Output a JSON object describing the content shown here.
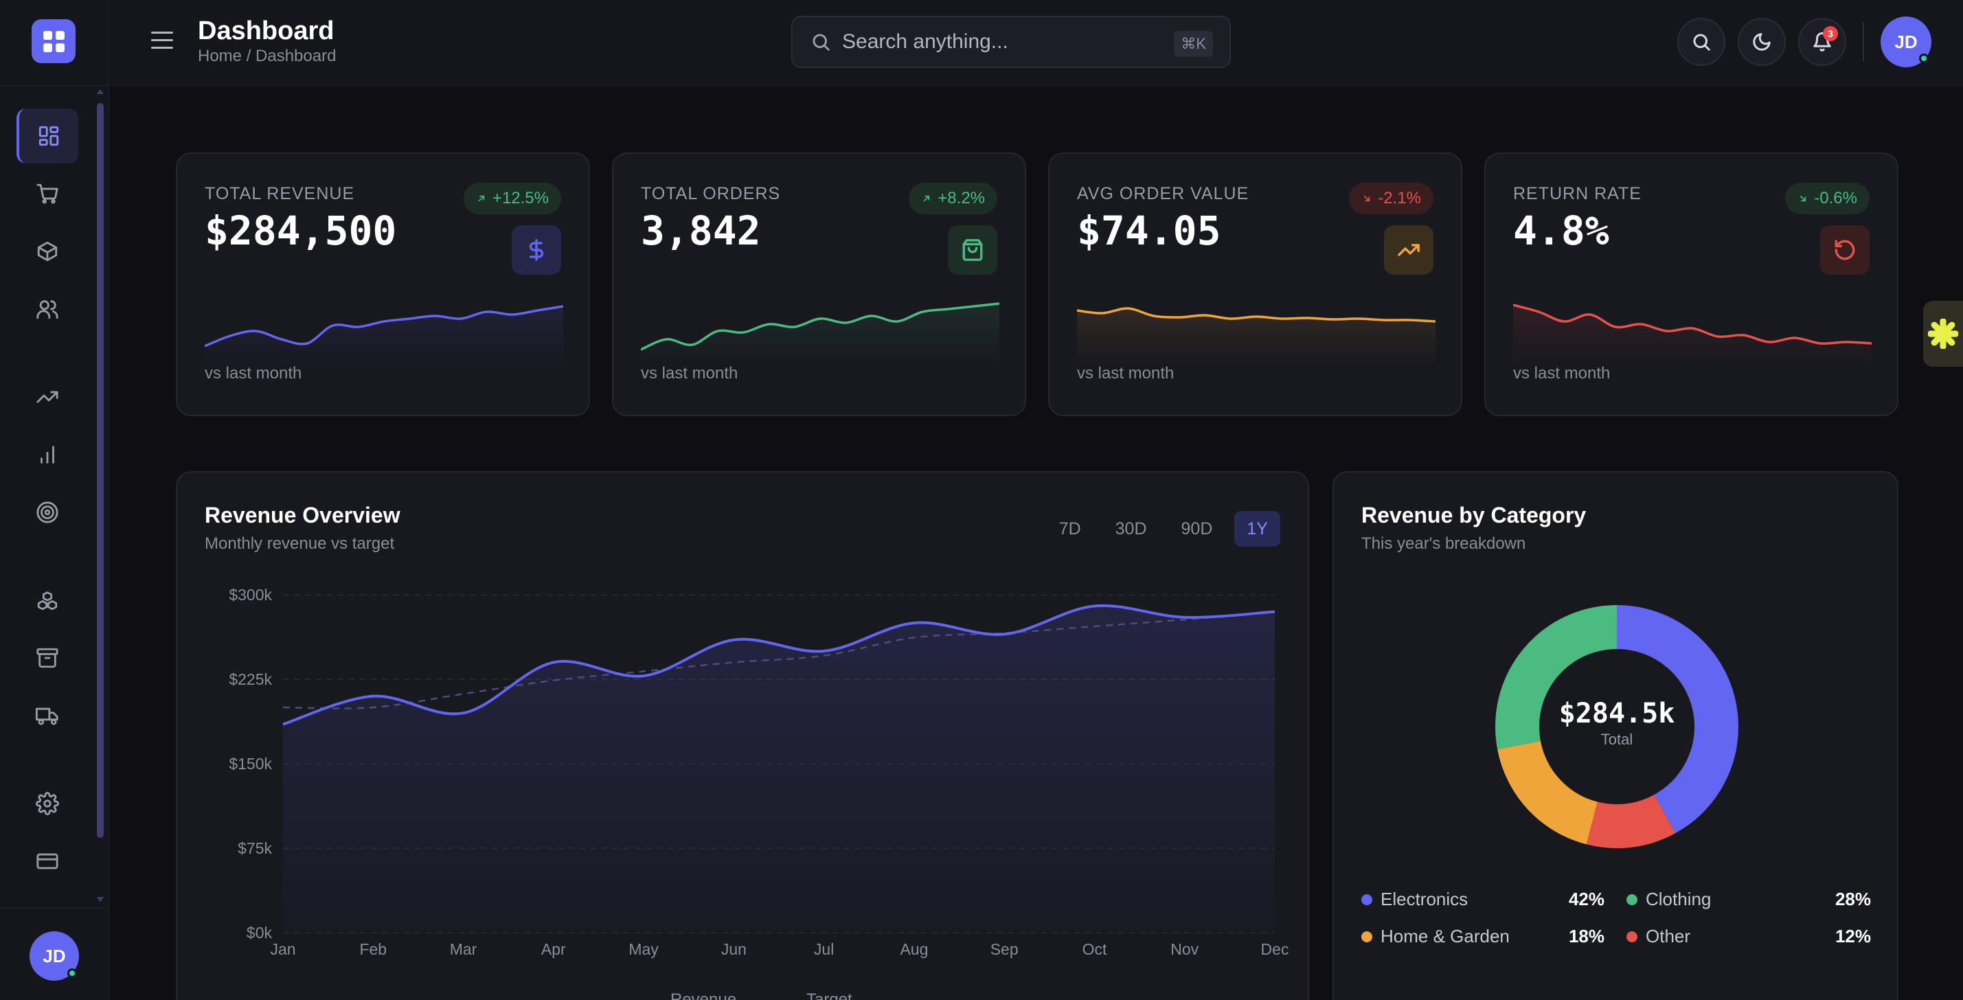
{
  "app": {
    "title": "Dashboard",
    "breadcrumb": "Home / Dashboard",
    "user_initials": "JD"
  },
  "search": {
    "placeholder": "Search anything...",
    "shortcut": "⌘K"
  },
  "header": {
    "notification_count": "3"
  },
  "sidebar": {
    "items": [
      {
        "name": "dashboard",
        "icon": "grid-icon",
        "active": true
      },
      {
        "name": "orders",
        "icon": "cart-icon"
      },
      {
        "name": "products",
        "icon": "box-icon"
      },
      {
        "name": "customers",
        "icon": "users-icon"
      },
      {
        "name": "trends",
        "icon": "trending-up-icon"
      },
      {
        "name": "analytics",
        "icon": "bar-chart-icon"
      },
      {
        "name": "goals",
        "icon": "target-icon"
      },
      {
        "name": "inventory",
        "icon": "boxes-icon"
      },
      {
        "name": "archive",
        "icon": "archive-icon"
      },
      {
        "name": "shipping",
        "icon": "truck-icon"
      },
      {
        "name": "settings",
        "icon": "gear-icon"
      },
      {
        "name": "billing",
        "icon": "credit-card-icon"
      }
    ]
  },
  "kpis": [
    {
      "label": "TOTAL REVENUE",
      "value": "$284,500",
      "change": "+12.5%",
      "trend": "up",
      "icon": "dollar-icon",
      "color": "#6366f1",
      "footer": "vs last month",
      "spark": [
        0.3,
        0.45,
        0.52,
        0.4,
        0.34,
        0.6,
        0.58,
        0.66,
        0.7,
        0.74,
        0.7,
        0.8,
        0.76,
        0.82,
        0.88
      ]
    },
    {
      "label": "TOTAL ORDERS",
      "value": "3,842",
      "change": "+8.2%",
      "trend": "up",
      "icon": "shopping-bag-icon",
      "color": "#4cbb82",
      "footer": "vs last month",
      "spark": [
        0.25,
        0.4,
        0.32,
        0.52,
        0.5,
        0.62,
        0.58,
        0.7,
        0.64,
        0.74,
        0.66,
        0.8,
        0.84,
        0.88,
        0.92
      ]
    },
    {
      "label": "AVG ORDER VALUE",
      "value": "$74.05",
      "change": "-2.1%",
      "trend": "down",
      "icon": "trending-up-icon",
      "color": "#f0a53a",
      "footer": "vs last month",
      "spark": [
        0.82,
        0.78,
        0.85,
        0.74,
        0.72,
        0.75,
        0.7,
        0.73,
        0.7,
        0.71,
        0.69,
        0.7,
        0.68,
        0.68,
        0.66
      ]
    },
    {
      "label": "RETURN RATE",
      "value": "4.8%",
      "change": "-0.6%",
      "trend": "down-good",
      "icon": "rotate-ccw-icon",
      "color": "#e5534b",
      "footer": "vs last month",
      "spark": [
        0.9,
        0.8,
        0.66,
        0.76,
        0.58,
        0.62,
        0.52,
        0.56,
        0.44,
        0.46,
        0.36,
        0.42,
        0.34,
        0.36,
        0.34
      ]
    }
  ],
  "revenue_overview": {
    "title": "Revenue Overview",
    "subtitle": "Monthly revenue vs target",
    "ranges": [
      "7D",
      "30D",
      "90D",
      "1Y"
    ],
    "active_range": "1Y",
    "legend": [
      "Revenue",
      "Target"
    ]
  },
  "chart_data": {
    "type": "line",
    "title": "Revenue Overview",
    "categories": [
      "Jan",
      "Feb",
      "Mar",
      "Apr",
      "May",
      "Jun",
      "Jul",
      "Aug",
      "Sep",
      "Oct",
      "Nov",
      "Dec"
    ],
    "y_ticks": [
      "$0k",
      "$75k",
      "$150k",
      "$225k",
      "$300k"
    ],
    "ylim": [
      0,
      300
    ],
    "grid": true,
    "series": [
      {
        "name": "Revenue",
        "color": "#6366f1",
        "style": "solid",
        "values": [
          185,
          210,
          195,
          240,
          228,
          260,
          250,
          275,
          265,
          290,
          280,
          285
        ]
      },
      {
        "name": "Target",
        "color": "#4c4c80",
        "style": "dashed",
        "values": [
          200,
          200,
          212,
          224,
          232,
          240,
          246,
          262,
          266,
          272,
          278,
          285
        ]
      }
    ]
  },
  "category": {
    "title": "Revenue by Category",
    "subtitle": "This year's breakdown",
    "total": "$284.5k",
    "total_label": "Total",
    "slices": [
      {
        "name": "Electronics",
        "pct": "42%",
        "value": 42,
        "color": "#6366f1"
      },
      {
        "name": "Other",
        "pct": "12%",
        "value": 12,
        "color": "#e5534b"
      },
      {
        "name": "Home & Garden",
        "pct": "18%",
        "value": 18,
        "color": "#f0a53a"
      },
      {
        "name": "Clothing",
        "pct": "28%",
        "value": 28,
        "color": "#4cbb82"
      }
    ],
    "legend_left": [
      {
        "name": "Electronics",
        "pct": "42%",
        "color": "#6366f1"
      },
      {
        "name": "Home & Garden",
        "pct": "18%",
        "color": "#f0a53a"
      }
    ],
    "legend_right": [
      {
        "name": "Clothing",
        "pct": "28%",
        "color": "#4cbb82"
      },
      {
        "name": "Other",
        "pct": "12%",
        "color": "#e5534b"
      }
    ]
  }
}
